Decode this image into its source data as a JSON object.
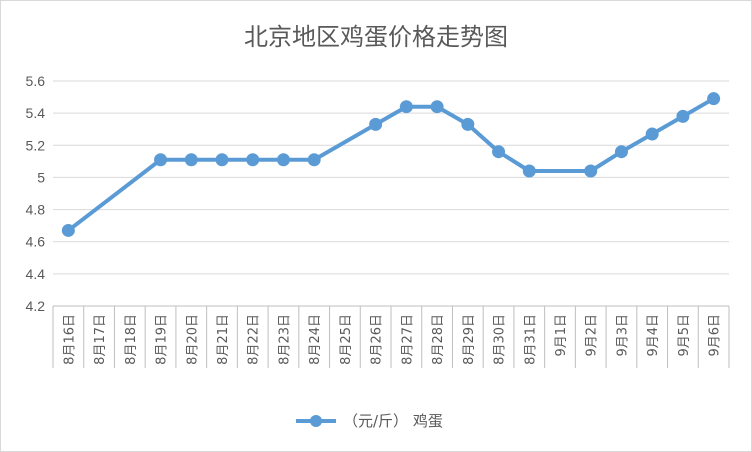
{
  "chart_data": {
    "type": "line",
    "title": "北京地区鸡蛋价格走势图",
    "xlabel": "",
    "ylabel": "",
    "ylim": [
      4.2,
      5.6
    ],
    "yticks": [
      "4.2",
      "4.4",
      "4.6",
      "4.8",
      "5",
      "5.2",
      "5.4",
      "5.6"
    ],
    "grid": true,
    "legend_position": "bottom",
    "series_color": "#5b9bd5",
    "categories": [
      "8月16日",
      "8月17日",
      "8月18日",
      "8月19日",
      "8月20日",
      "8月21日",
      "8月22日",
      "8月23日",
      "8月24日",
      "8月25日",
      "8月26日",
      "8月27日",
      "8月28日",
      "8月29日",
      "8月30日",
      "8月31日",
      "9月1日",
      "9月2日",
      "9月3日",
      "9月4日",
      "9月5日",
      "9月6日"
    ],
    "series": [
      {
        "name": "（元/斤） 鸡蛋",
        "values": [
          4.67,
          null,
          null,
          5.11,
          5.11,
          5.11,
          5.11,
          5.11,
          5.11,
          null,
          5.33,
          5.44,
          5.44,
          5.33,
          5.16,
          5.04,
          null,
          5.04,
          5.16,
          5.27,
          5.38,
          5.49
        ]
      }
    ]
  }
}
